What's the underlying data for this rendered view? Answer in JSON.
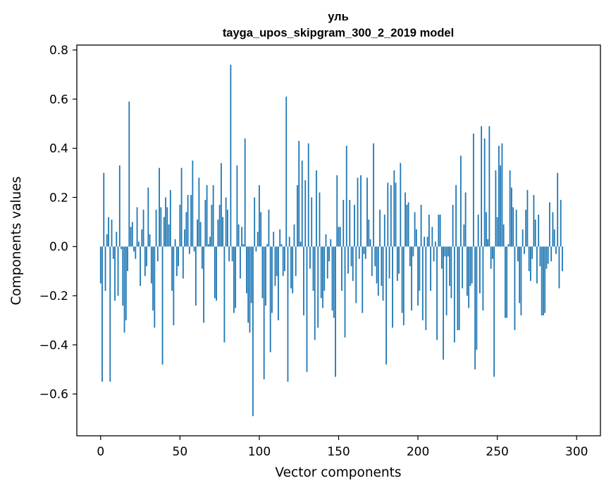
{
  "chart_data": {
    "type": "bar",
    "title": "уль",
    "subtitle": "tayga_upos_skipgram_300_2_2019 model",
    "xlabel": "Vector components",
    "ylabel": "Components values",
    "xlim": [
      -15,
      315
    ],
    "ylim": [
      -0.77,
      0.82
    ],
    "xticks": [
      0,
      50,
      100,
      150,
      200,
      250,
      300
    ],
    "yticks": [
      -0.6,
      -0.4,
      -0.2,
      0.0,
      0.2,
      0.4,
      0.6,
      0.8
    ],
    "ytick_labels": [
      "−0.6",
      "−0.4",
      "−0.2",
      "0.0",
      "0.2",
      "0.4",
      "0.6",
      "0.8"
    ],
    "bar_color": "#1f77b4",
    "grid": false,
    "x": "0..299 (component index)",
    "values": [
      -0.15,
      -0.55,
      0.3,
      -0.18,
      0.05,
      0.12,
      -0.55,
      0.11,
      -0.05,
      -0.22,
      0.06,
      -0.2,
      0.33,
      -0.01,
      -0.24,
      -0.35,
      -0.3,
      -0.1,
      0.59,
      0.08,
      0.1,
      -0.02,
      -0.05,
      0.16,
      0.02,
      -0.16,
      0.07,
      0.15,
      -0.12,
      -0.08,
      0.24,
      0.05,
      -0.15,
      -0.26,
      -0.33,
      0.15,
      -0.06,
      0.32,
      0.16,
      -0.48,
      0.12,
      0.2,
      0.16,
      0.09,
      0.23,
      -0.18,
      -0.32,
      0.03,
      -0.12,
      -0.08,
      0.17,
      0.32,
      -0.13,
      0.07,
      0.14,
      0.21,
      -0.03,
      0.21,
      0.35,
      -0.02,
      -0.24,
      0.11,
      0.28,
      0.1,
      -0.09,
      -0.31,
      0.19,
      0.25,
      0.01,
      0.04,
      0.17,
      0.25,
      -0.21,
      -0.22,
      0.11,
      0.17,
      0.34,
      0.12,
      -0.39,
      0.2,
      0.15,
      -0.06,
      0.74,
      -0.06,
      -0.27,
      -0.25,
      0.33,
      0.09,
      -0.13,
      0.08,
      0.01,
      0.44,
      -0.19,
      -0.31,
      -0.35,
      -0.23,
      -0.69,
      0.2,
      -0.02,
      0.06,
      0.25,
      0.14,
      -0.21,
      -0.54,
      -0.24,
      0.01,
      0.15,
      -0.43,
      -0.27,
      0.06,
      -0.16,
      -0.12,
      -0.3,
      0.07,
      0.01,
      -0.12,
      -0.1,
      0.61,
      -0.55,
      0.04,
      -0.17,
      -0.19,
      0.09,
      -0.12,
      0.25,
      0.43,
      0.02,
      0.35,
      -0.28,
      0.27,
      -0.51,
      0.42,
      -0.09,
      0.2,
      -0.18,
      -0.38,
      0.31,
      -0.33,
      0.22,
      -0.21,
      -0.25,
      -0.18,
      0.05,
      -0.13,
      -0.06,
      0.03,
      -0.26,
      -0.29,
      -0.53,
      0.29,
      0.08,
      0.08,
      -0.18,
      0.19,
      -0.37,
      0.41,
      -0.11,
      0.19,
      -0.08,
      -0.14,
      0.17,
      -0.23,
      0.28,
      -0.05,
      0.29,
      -0.27,
      -0.03,
      -0.05,
      0.28,
      0.11,
      0.03,
      -0.12,
      0.42,
      -0.08,
      -0.15,
      -0.2,
      0.15,
      -0.16,
      -0.22,
      0.13,
      -0.48,
      0.26,
      -0.13,
      0.25,
      -0.33,
      0.31,
      0.26,
      -0.14,
      -0.11,
      0.34,
      -0.27,
      -0.32,
      0.22,
      0.17,
      0.18,
      -0.08,
      -0.26,
      -0.04,
      0.14,
      0.07,
      -0.24,
      -0.18,
      0.17,
      -0.3,
      0.04,
      -0.34,
      0.04,
      0.13,
      -0.18,
      0.08,
      -0.06,
      0.02,
      -0.38,
      0.13,
      0.13,
      -0.09,
      -0.46,
      -0.04,
      -0.28,
      -0.04,
      -0.16,
      -0.21,
      0.17,
      -0.39,
      0.25,
      -0.34,
      -0.34,
      0.37,
      -0.17,
      0.09,
      0.22,
      -0.2,
      -0.25,
      -0.16,
      -0.15,
      0.46,
      -0.5,
      -0.42,
      0.13,
      -0.19,
      0.49,
      -0.26,
      0.44,
      0.14,
      0.03,
      0.49,
      -0.09,
      -0.05,
      -0.53,
      0.31,
      0.12,
      0.41,
      0.33,
      0.42,
      0.09,
      -0.29,
      -0.29,
      0.01,
      0.31,
      0.24,
      0.16,
      -0.34,
      0.15,
      -0.06,
      -0.23,
      -0.28,
      0.07,
      -0.03,
      0.15,
      0.23,
      -0.1,
      -0.14,
      -0.05,
      0.21,
      0.11,
      -0.15,
      0.13,
      -0.08,
      -0.28,
      -0.28,
      -0.27,
      -0.09,
      -0.07,
      0.18,
      -0.06,
      0.14,
      0.07,
      -0.03,
      0.3,
      -0.17,
      0.19,
      -0.1,
      0.0
    ]
  }
}
